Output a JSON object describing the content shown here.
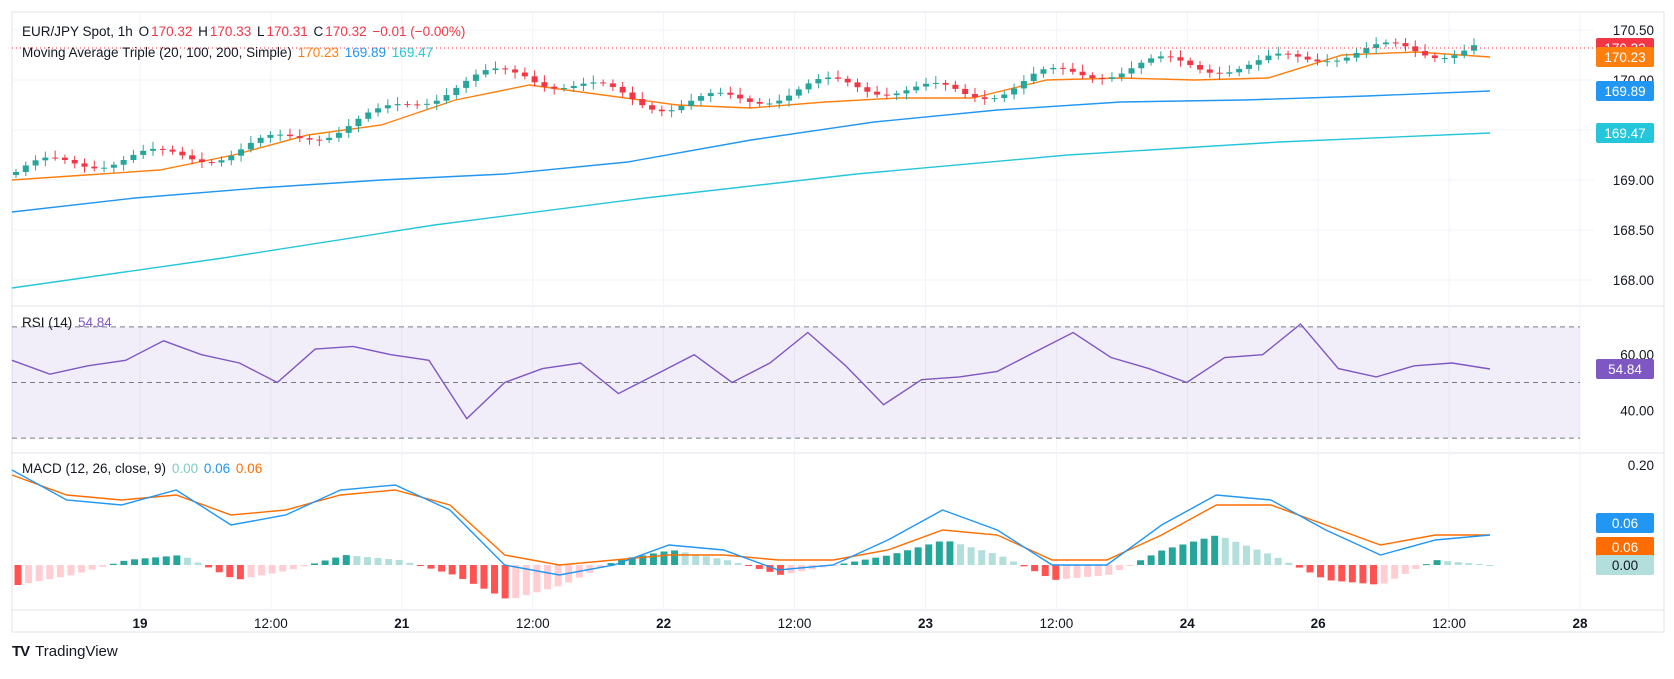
{
  "header": {
    "symbol": "EUR/JPY Spot, 1h",
    "o_label": "O",
    "o_value": "170.32",
    "h_label": "H",
    "h_value": "170.33",
    "l_label": "L",
    "l_value": "170.31",
    "c_label": "C",
    "c_value": "170.32",
    "change": "−0.01 (−0.00%)"
  },
  "ma_legend": {
    "label": "Moving Average Triple (20, 100, 200, Simple)",
    "ma20": "170.23",
    "ma100": "169.89",
    "ma200": "169.47"
  },
  "rsi_legend": {
    "label": "RSI (14)",
    "value": "54.84"
  },
  "macd_legend": {
    "label": "MACD (12, 26, close, 9)",
    "hist": "0.00",
    "macd": "0.06",
    "signal": "0.06"
  },
  "footer": {
    "brand": "TradingView"
  },
  "colors": {
    "up": "#26a69a",
    "down": "#f23645",
    "ma20": "#ff7f0e",
    "ma100": "#2196f3",
    "ma200": "#26c6da",
    "rsi": "#7e57c2",
    "macd": "#2196f3",
    "signal": "#ff6d00",
    "hist_up_strong": "#26a69a",
    "hist_up_weak": "#b2dfdb",
    "hist_dn_strong": "#ff5252",
    "hist_dn_weak": "#ffcdd2"
  },
  "chart_data": [
    {
      "type": "candlestick",
      "title": "EUR/JPY Spot, 1h",
      "ylim": [
        167.8,
        170.6
      ],
      "y_ticks": [
        "170.50",
        "170.00",
        "169.50",
        "169.00",
        "168.50",
        "168.00"
      ],
      "x_ticks": [
        "19",
        "12:00",
        "21",
        "12:00",
        "22",
        "12:00",
        "23",
        "12:00",
        "24",
        "26",
        "12:00",
        "28"
      ],
      "price_labels": [
        {
          "name": "last",
          "value": "170.32"
        },
        {
          "name": "ma20",
          "value": "170.23"
        },
        {
          "name": "ma100",
          "value": "169.89"
        },
        {
          "name": "ma200",
          "value": "169.47"
        }
      ],
      "series": [
        {
          "name": "MA 20",
          "values": [
            169.0,
            169.05,
            169.1,
            169.25,
            169.45,
            169.55,
            169.8,
            169.95,
            169.85,
            169.75,
            169.72,
            169.78,
            169.82,
            169.82,
            170.0,
            170.02,
            170.0,
            170.02,
            170.25,
            170.28,
            170.23
          ]
        },
        {
          "name": "MA 100",
          "values": [
            168.68,
            168.82,
            168.92,
            169.0,
            169.06,
            169.18,
            169.4,
            169.58,
            169.7,
            169.78,
            169.8,
            169.84,
            169.89
          ]
        },
        {
          "name": "MA 200",
          "values": [
            167.92,
            168.22,
            168.55,
            168.82,
            169.06,
            169.25,
            169.38,
            169.47
          ]
        }
      ]
    },
    {
      "type": "line",
      "title": "RSI (14)",
      "ylim": [
        25,
        75
      ],
      "y_ticks": [
        "60.00",
        "40.00"
      ],
      "bands": [
        70,
        50,
        30
      ],
      "series": [
        {
          "name": "RSI (14)",
          "values": [
            58,
            53,
            56,
            58,
            65,
            60,
            57,
            50,
            62,
            63,
            60,
            58,
            37,
            50,
            55,
            57,
            46,
            53,
            60,
            50,
            57,
            68,
            56,
            42,
            51,
            52,
            54,
            61,
            68,
            59,
            55,
            50,
            59,
            60,
            71,
            55,
            52,
            56,
            57,
            54.84
          ]
        }
      ]
    },
    {
      "type": "line",
      "title": "MACD (12, 26, close, 9)",
      "ylim": [
        -0.08,
        0.22
      ],
      "y_ticks": [
        "0.20",
        "0.00"
      ],
      "series": [
        {
          "name": "MACD",
          "values": [
            0.19,
            0.13,
            0.12,
            0.15,
            0.08,
            0.1,
            0.15,
            0.16,
            0.11,
            0.0,
            -0.02,
            0.0,
            0.04,
            0.03,
            -0.01,
            0.0,
            0.05,
            0.11,
            0.07,
            0.0,
            0.0,
            0.08,
            0.14,
            0.13,
            0.07,
            0.02,
            0.05,
            0.06
          ]
        },
        {
          "name": "Signal",
          "values": [
            0.18,
            0.14,
            0.13,
            0.14,
            0.1,
            0.11,
            0.14,
            0.15,
            0.12,
            0.02,
            0.0,
            0.01,
            0.02,
            0.02,
            0.01,
            0.01,
            0.03,
            0.07,
            0.06,
            0.01,
            0.01,
            0.06,
            0.12,
            0.12,
            0.08,
            0.04,
            0.06,
            0.06
          ]
        },
        {
          "name": "Histogram",
          "values": [
            -0.04,
            -0.02,
            0.01,
            0.02,
            -0.03,
            -0.01,
            0.02,
            0.01,
            -0.02,
            -0.07,
            -0.04,
            0.01,
            0.03,
            0.01,
            -0.02,
            0.0,
            0.02,
            0.05,
            0.02,
            -0.03,
            -0.02,
            0.03,
            0.06,
            0.02,
            -0.03,
            -0.04,
            0.01,
            0.0
          ]
        }
      ]
    }
  ]
}
